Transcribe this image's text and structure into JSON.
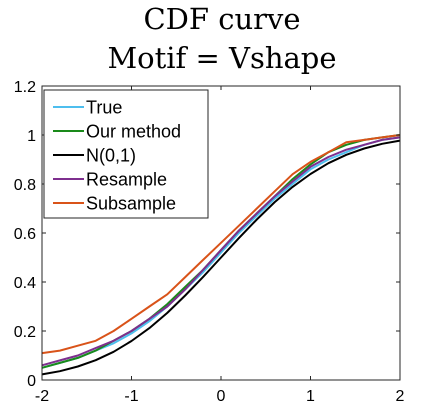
{
  "chart_data": {
    "type": "line",
    "title": [
      "CDF curve",
      "Motif = Vshape"
    ],
    "xlabel": "",
    "ylabel": "",
    "xlim": [
      -2,
      2
    ],
    "ylim": [
      0,
      1.2
    ],
    "xticks": [
      -2,
      -1,
      0,
      1,
      2
    ],
    "xtick_labels": [
      "-2",
      "-1",
      "0",
      "1",
      "2"
    ],
    "yticks": [
      0,
      0.2,
      0.4,
      0.6,
      0.8,
      1,
      1.2
    ],
    "ytick_labels": [
      "0",
      "0.2",
      "0.4",
      "0.6",
      "0.8",
      "1",
      "1.2"
    ],
    "grid": false,
    "legend_position": "top-left",
    "series": [
      {
        "name": "True",
        "color": "#4DBEEE",
        "x": [
          -2,
          -1.8,
          -1.6,
          -1.4,
          -1.2,
          -1,
          -0.8,
          -0.6,
          -0.4,
          -0.2,
          0,
          0.2,
          0.4,
          0.6,
          0.8,
          1,
          1.2,
          1.4,
          1.6,
          1.8,
          2
        ],
        "y": [
          0.05,
          0.07,
          0.09,
          0.12,
          0.15,
          0.19,
          0.24,
          0.3,
          0.37,
          0.44,
          0.52,
          0.6,
          0.67,
          0.74,
          0.8,
          0.86,
          0.9,
          0.93,
          0.96,
          0.98,
          0.99
        ]
      },
      {
        "name": "Our method",
        "color": "#1A8A1A",
        "x": [
          -2,
          -1.8,
          -1.6,
          -1.4,
          -1.2,
          -1,
          -0.8,
          -0.6,
          -0.4,
          -0.2,
          0,
          0.2,
          0.4,
          0.6,
          0.8,
          1,
          1.2,
          1.4,
          1.6,
          1.8,
          2
        ],
        "y": [
          0.05,
          0.07,
          0.09,
          0.12,
          0.16,
          0.2,
          0.25,
          0.31,
          0.38,
          0.45,
          0.53,
          0.61,
          0.68,
          0.75,
          0.82,
          0.88,
          0.93,
          0.96,
          0.98,
          0.99,
          1.0
        ]
      },
      {
        "name": "N(0,1)",
        "color": "#000000",
        "x": [
          -2,
          -1.8,
          -1.6,
          -1.4,
          -1.2,
          -1,
          -0.8,
          -0.6,
          -0.4,
          -0.2,
          0,
          0.2,
          0.4,
          0.6,
          0.8,
          1,
          1.2,
          1.4,
          1.6,
          1.8,
          2
        ],
        "y": [
          0.023,
          0.036,
          0.055,
          0.081,
          0.115,
          0.159,
          0.212,
          0.274,
          0.345,
          0.421,
          0.5,
          0.579,
          0.655,
          0.726,
          0.788,
          0.841,
          0.885,
          0.919,
          0.945,
          0.964,
          0.977
        ]
      },
      {
        "name": "Resample",
        "color": "#7E2F8E",
        "x": [
          -2,
          -1.8,
          -1.6,
          -1.4,
          -1.2,
          -1,
          -0.8,
          -0.6,
          -0.4,
          -0.2,
          0,
          0.2,
          0.4,
          0.6,
          0.8,
          1,
          1.2,
          1.4,
          1.6,
          1.8,
          2
        ],
        "y": [
          0.06,
          0.08,
          0.1,
          0.13,
          0.16,
          0.2,
          0.25,
          0.3,
          0.37,
          0.45,
          0.53,
          0.61,
          0.68,
          0.75,
          0.81,
          0.87,
          0.91,
          0.94,
          0.96,
          0.98,
          0.99
        ]
      },
      {
        "name": "Subsample",
        "color": "#D95319",
        "x": [
          -2,
          -1.8,
          -1.6,
          -1.4,
          -1.2,
          -1,
          -0.8,
          -0.6,
          -0.4,
          -0.2,
          0,
          0.2,
          0.4,
          0.6,
          0.8,
          1,
          1.2,
          1.4,
          1.6,
          1.8,
          2
        ],
        "y": [
          0.11,
          0.12,
          0.14,
          0.16,
          0.2,
          0.25,
          0.3,
          0.35,
          0.42,
          0.49,
          0.56,
          0.63,
          0.7,
          0.77,
          0.84,
          0.89,
          0.93,
          0.97,
          0.98,
          0.99,
          1.0
        ]
      }
    ]
  }
}
